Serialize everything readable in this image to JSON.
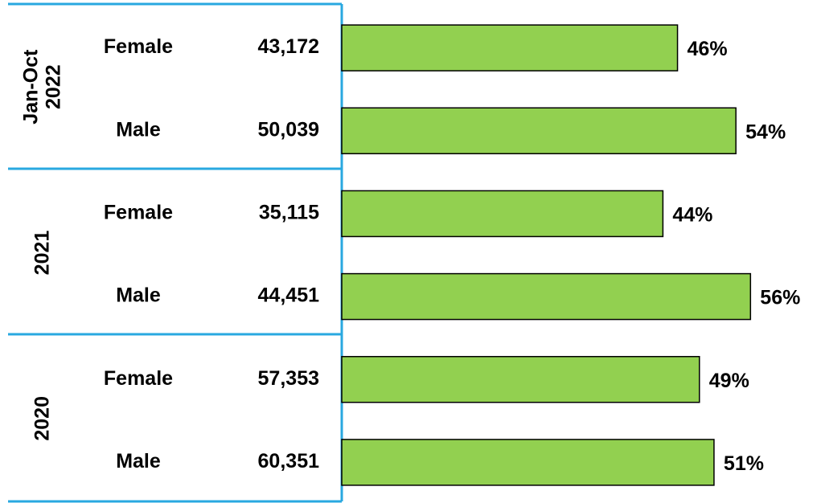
{
  "chart_data": {
    "type": "bar",
    "groups": [
      [
        "Jan-Oct",
        "2022"
      ],
      [
        "2021"
      ],
      [
        "2020"
      ]
    ],
    "categories": [
      "Female",
      "Male",
      "Female",
      "Male",
      "Female",
      "Male"
    ],
    "counts": [
      "43,172",
      "50,039",
      "35,115",
      "44,451",
      "57,353",
      "60,351"
    ],
    "values": [
      46,
      54,
      44,
      56,
      49,
      51
    ],
    "value_labels": [
      "46%",
      "54%",
      "44%",
      "56%",
      "49%",
      "51%"
    ],
    "color": "#92d050",
    "xlim": [
      0,
      65
    ]
  }
}
